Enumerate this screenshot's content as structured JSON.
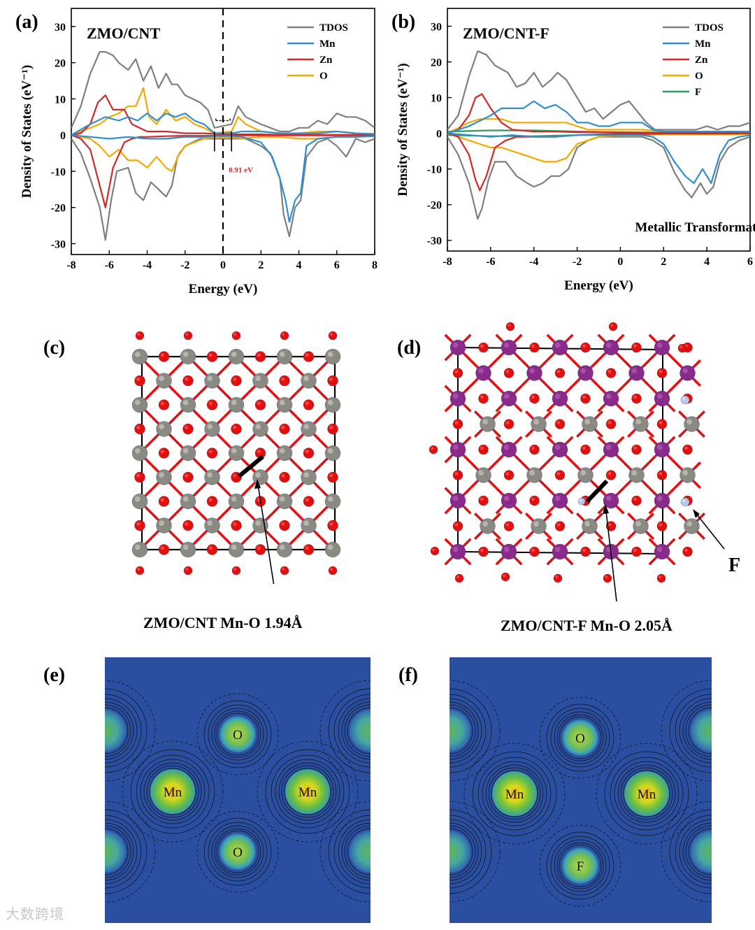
{
  "panels": {
    "a": {
      "label": "(a)",
      "title": "ZMO/CNT",
      "gap_label": "0.91 eV",
      "annotation": ""
    },
    "b": {
      "label": "(b)",
      "title": "ZMO/CNT-F",
      "gap_label": "",
      "annotation": "Metallic Transformation"
    },
    "c": {
      "label": "(c)",
      "caption": "ZMO/CNT Mn-O 1.94Å"
    },
    "d": {
      "label": "(d)",
      "caption": "ZMO/CNT-F Mn-O 2.05Å",
      "arrow_label": "F"
    },
    "e": {
      "label": "(e)",
      "atoms": [
        "O",
        "Mn",
        "Mn",
        "O"
      ]
    },
    "f": {
      "label": "(f)",
      "atoms": [
        "O",
        "Mn",
        "Mn",
        "F"
      ]
    }
  },
  "watermark": "大数跨境",
  "colors": {
    "TDOS": "#7f7f7f",
    "Mn": "#2f8fce",
    "Zn": "#d62728",
    "O": "#f2a900",
    "F": "#2e9c5a",
    "atom_O": "#e01010",
    "atom_Mn": "#8a2a8a",
    "atom_Zn": "#8a8a82",
    "atom_F": "#b8c4e8",
    "map_bg": "#2a4fa0"
  },
  "chart_data": [
    {
      "type": "line",
      "title": "ZMO/CNT",
      "xlabel": "Energy (eV)",
      "ylabel": "Density of States (eV⁻¹)",
      "xlim": [
        -8,
        8
      ],
      "ylim": [
        -33,
        35
      ],
      "xticks": [
        -8,
        -6,
        -4,
        -2,
        0,
        2,
        4,
        6,
        8
      ],
      "yticks": [
        30,
        20,
        10,
        0,
        -10,
        -20,
        -30
      ],
      "fermi_level": 0,
      "band_gap_eV": 0.91,
      "series": [
        {
          "name": "TDOS",
          "x": [
            -8,
            -7.5,
            -7,
            -6.5,
            -6.2,
            -5.8,
            -5.5,
            -5,
            -4.6,
            -4.2,
            -3.8,
            -3.4,
            -3,
            -2.7,
            -2.4,
            -2,
            -1.6,
            -1.2,
            -0.8,
            -0.45,
            0.45,
            0.8,
            1.2,
            1.6,
            2,
            2.5,
            3,
            3.5,
            4,
            4.5,
            5,
            5.5,
            6,
            6.5,
            7,
            7.5,
            8
          ],
          "y": [
            2,
            8,
            17,
            23,
            23,
            22,
            20,
            18,
            21,
            15,
            19,
            13,
            17,
            14,
            14,
            11,
            10,
            9,
            7,
            2,
            3,
            8,
            5,
            4,
            3,
            2,
            1,
            1,
            2,
            2,
            4,
            3,
            6,
            5,
            5,
            4,
            2
          ]
        },
        {
          "name": "TDOS",
          "x": [
            -8,
            -7.5,
            -7,
            -6.5,
            -6.2,
            -5.9,
            -5.6,
            -5,
            -4.6,
            -4.2,
            -3.8,
            -3.4,
            -3,
            -2.7,
            -2.4,
            -2,
            -1.6,
            -1.2,
            -0.8,
            -0.45,
            0.45,
            0.8,
            1.2,
            1.6,
            2,
            2.5,
            3,
            3.2,
            3.5,
            3.8,
            4.1,
            4.4,
            5,
            5.5,
            6,
            6.5,
            7,
            7.5,
            8
          ],
          "y": [
            -1,
            -5,
            -12,
            -20,
            -29,
            -18,
            -10,
            -9,
            -16,
            -18,
            -13,
            -15,
            -17,
            -14,
            -6,
            -3,
            -2,
            -1,
            -1,
            -1,
            -1,
            -1,
            -1,
            -2,
            -3,
            -5,
            -12,
            -22,
            -28,
            -20,
            -18,
            -6,
            -2,
            -1,
            -3,
            -6,
            -1,
            -2,
            -1
          ]
        },
        {
          "name": "Mn",
          "x": [
            -8,
            -7,
            -6.2,
            -5.5,
            -5,
            -4.5,
            -4,
            -3.5,
            -3,
            -2.5,
            -2,
            -1.5,
            -1,
            -0.45,
            0.45,
            1,
            2,
            3,
            4,
            5,
            6,
            7,
            8
          ],
          "y": [
            0,
            3,
            5,
            4,
            5,
            4,
            6,
            4,
            6,
            5,
            6,
            4,
            3,
            0.5,
            0.5,
            1,
            1,
            0.5,
            0.5,
            0.5,
            1,
            0.5,
            0.3
          ]
        },
        {
          "name": "Mn",
          "x": [
            -8,
            -7,
            -6,
            -5,
            -4,
            -3,
            -2,
            -1,
            -0.45,
            0.45,
            1,
            2,
            2.6,
            3,
            3.3,
            3.5,
            3.8,
            4.1,
            4.4,
            5,
            6,
            7,
            8
          ],
          "y": [
            0,
            -0.5,
            -1,
            -0.5,
            -1,
            -1,
            -0.5,
            -0.5,
            -0.3,
            -0.3,
            -0.5,
            -2,
            -6,
            -12,
            -18,
            -24,
            -18,
            -16,
            -3,
            -1,
            -0.5,
            -0.5,
            -0.3
          ]
        },
        {
          "name": "Zn",
          "x": [
            -8,
            -7.5,
            -7,
            -6.6,
            -6.2,
            -5.8,
            -5.2,
            -4.8,
            -4.4,
            -4,
            -3,
            -2,
            -1,
            0,
            1,
            2,
            3,
            4,
            5,
            6,
            7,
            8
          ],
          "y": [
            0,
            0.5,
            3,
            9,
            11,
            7,
            7,
            3,
            2,
            1,
            1,
            0.5,
            0.5,
            0.2,
            0.2,
            0.2,
            0.1,
            0.1,
            0.1,
            0.1,
            0.1,
            0
          ]
        },
        {
          "name": "Zn",
          "x": [
            -8,
            -7.5,
            -7,
            -6.6,
            -6.2,
            -5.8,
            -5.2,
            -4.8,
            -4.4,
            -4,
            -3,
            -2,
            -1,
            0,
            1,
            2,
            3,
            4,
            5,
            6,
            7,
            8
          ],
          "y": [
            0,
            -1,
            -4,
            -12,
            -20,
            -9,
            -2,
            -1,
            -0.5,
            -0.5,
            -0.3,
            -0.2,
            -0.2,
            -0.1,
            -0.1,
            -0.1,
            -0.1,
            -0.1,
            -0.1,
            -0.1,
            -0.1,
            0
          ]
        },
        {
          "name": "O",
          "x": [
            -8,
            -7,
            -6.5,
            -6,
            -5.5,
            -5,
            -4.6,
            -4.2,
            -3.9,
            -3.5,
            -3,
            -2.5,
            -2,
            -1.5,
            -1,
            -0.45,
            0.45,
            0.8,
            1.2,
            2,
            3,
            4,
            5,
            6,
            7,
            8
          ],
          "y": [
            0,
            2,
            3,
            5,
            6,
            8,
            8,
            13,
            5,
            3,
            7,
            4,
            5,
            3,
            2,
            0.5,
            1,
            5,
            3,
            1,
            0.5,
            0.5,
            1,
            1,
            0.5,
            0.3
          ]
        },
        {
          "name": "O",
          "x": [
            -8,
            -7,
            -6.5,
            -6,
            -5.5,
            -5,
            -4.5,
            -4,
            -3.5,
            -3,
            -2.7,
            -2.3,
            -2,
            -1.5,
            -1,
            -0.45,
            0.45,
            1,
            2,
            3,
            4,
            5,
            6,
            7,
            8
          ],
          "y": [
            0,
            -1,
            -3,
            -6,
            -4,
            -7,
            -7,
            -9,
            -6,
            -9,
            -10,
            -5,
            -3,
            -2,
            -1,
            -0.5,
            -0.5,
            -1,
            -0.5,
            -0.5,
            -1,
            -1,
            -0.5,
            -0.5,
            -0.3
          ]
        }
      ],
      "legend": [
        "TDOS",
        "Mn",
        "Zn",
        "O"
      ]
    },
    {
      "type": "line",
      "title": "ZMO/CNT-F",
      "xlabel": "Energy (eV)",
      "ylabel": "Density of States (eV⁻¹)",
      "xlim": [
        -8,
        6
      ],
      "ylim": [
        -33,
        35
      ],
      "xticks": [
        -8,
        -6,
        -4,
        -2,
        0,
        2,
        4,
        6
      ],
      "yticks": [
        30,
        20,
        10,
        0,
        -10,
        -20,
        -30
      ],
      "annotation": "Metallic Transformation",
      "series": [
        {
          "name": "TDOS",
          "x": [
            -8,
            -7.5,
            -7,
            -6.6,
            -6.2,
            -5.8,
            -5.2,
            -4.8,
            -4.4,
            -4,
            -3.6,
            -3.2,
            -2.9,
            -2.5,
            -2,
            -1.6,
            -1.2,
            -0.8,
            -0.4,
            0,
            0.4,
            0.8,
            1.2,
            1.6,
            2,
            2.5,
            3,
            3.5,
            4,
            4.5,
            5,
            5.5,
            6
          ],
          "y": [
            1,
            5,
            16,
            23,
            22,
            19,
            17,
            13,
            14,
            17,
            13,
            15,
            17,
            15,
            10,
            6,
            7,
            4,
            6,
            8,
            9,
            6,
            3,
            1,
            1,
            1,
            1,
            1,
            2,
            1,
            2,
            2,
            3
          ]
        },
        {
          "name": "TDOS",
          "x": [
            -8,
            -7.5,
            -7,
            -6.6,
            -6.4,
            -6.1,
            -5.8,
            -5.3,
            -4.8,
            -4.3,
            -4,
            -3.6,
            -3.2,
            -2.8,
            -2.4,
            -2,
            -1.5,
            -1,
            -0.5,
            0,
            0.5,
            1,
            1.5,
            2,
            2.5,
            3,
            3.3,
            3.7,
            4,
            4.3,
            4.6,
            5,
            5.5,
            6
          ],
          "y": [
            -1,
            -6,
            -14,
            -24,
            -21,
            -13,
            -8,
            -8,
            -12,
            -14,
            -15,
            -14,
            -12,
            -12,
            -10,
            -4,
            -2,
            -1,
            -1,
            -1,
            -1,
            -1,
            -2,
            -4,
            -11,
            -16,
            -18,
            -14,
            -17,
            -15,
            -8,
            -4,
            -2,
            -1
          ]
        },
        {
          "name": "Mn",
          "x": [
            -8,
            -7,
            -6,
            -5.5,
            -5,
            -4.5,
            -4,
            -3.5,
            -3,
            -2.5,
            -2,
            -1.5,
            -1,
            -0.5,
            0,
            0.5,
            1,
            1.5,
            2,
            3,
            4,
            5,
            6
          ],
          "y": [
            0,
            2,
            5,
            7,
            7,
            7,
            9,
            7,
            8,
            6,
            3,
            3,
            2,
            2,
            3,
            3,
            3,
            1,
            0.5,
            0.5,
            0.5,
            0.5,
            0.5
          ]
        },
        {
          "name": "Mn",
          "x": [
            -8,
            -7,
            -6,
            -5,
            -4,
            -3,
            -2,
            -1,
            0,
            1,
            1.5,
            2,
            2.5,
            3,
            3.4,
            3.8,
            4.2,
            4.6,
            5,
            5.5,
            6
          ],
          "y": [
            0,
            -0.5,
            -1,
            -0.5,
            -1,
            -1,
            -0.5,
            -0.5,
            -0.5,
            -0.5,
            -1,
            -3,
            -8,
            -12,
            -14,
            -10,
            -14,
            -6,
            -2,
            -1,
            -0.5
          ]
        },
        {
          "name": "Zn",
          "x": [
            -8,
            -7.5,
            -7,
            -6.7,
            -6.4,
            -6,
            -5.5,
            -5,
            -4,
            -3,
            -2,
            -1,
            0,
            1,
            2,
            3,
            4,
            5,
            6
          ],
          "y": [
            0,
            1,
            5,
            10,
            11,
            7,
            3,
            1,
            0.5,
            0.5,
            0.3,
            0.3,
            0.2,
            0.2,
            0.1,
            0.1,
            0.1,
            0.1,
            0
          ]
        },
        {
          "name": "Zn",
          "x": [
            -8,
            -7.5,
            -7,
            -6.7,
            -6.5,
            -6.2,
            -5.8,
            -5.3,
            -4.8,
            -4,
            -3,
            -2,
            -1,
            0,
            1,
            2,
            3,
            4,
            5,
            6
          ],
          "y": [
            0,
            -1,
            -6,
            -13,
            -16,
            -12,
            -4,
            -2,
            -1,
            -1,
            -1,
            -0.5,
            -0.3,
            -0.2,
            -0.2,
            -0.1,
            -0.1,
            -0.1,
            -0.1,
            0
          ]
        },
        {
          "name": "O",
          "x": [
            -8,
            -7,
            -6.5,
            -6,
            -5.5,
            -5,
            -4.5,
            -4,
            -3.5,
            -3,
            -2.5,
            -2,
            -1.5,
            -1,
            -0.5,
            0,
            0.5,
            1,
            2,
            3,
            4,
            5,
            6
          ],
          "y": [
            0,
            3,
            4,
            4,
            4,
            3,
            3,
            3,
            3,
            3,
            3,
            2,
            1,
            1,
            1,
            1,
            1,
            1,
            0.5,
            0.5,
            0.5,
            0.5,
            0.3
          ]
        },
        {
          "name": "O",
          "x": [
            -8,
            -7,
            -6.5,
            -6,
            -5.5,
            -5,
            -4.5,
            -4,
            -3.5,
            -3,
            -2.5,
            -2,
            -1.5,
            -1,
            0,
            1,
            2,
            3,
            4,
            5,
            6
          ],
          "y": [
            0,
            -2,
            -3,
            -4,
            -4,
            -5,
            -6,
            -7,
            -8,
            -8,
            -7,
            -3,
            -2,
            -1,
            -0.5,
            -0.5,
            -0.3,
            -0.3,
            -0.3,
            -0.3,
            -0.2
          ]
        },
        {
          "name": "F",
          "x": [
            -8,
            -6,
            -4,
            -2,
            0,
            2,
            4,
            6
          ],
          "y": [
            0.5,
            0.8,
            0.8,
            0.5,
            0.3,
            0.2,
            0.2,
            0.1
          ]
        },
        {
          "name": "F",
          "x": [
            -8,
            -6,
            -4,
            -2,
            0,
            2,
            4,
            6
          ],
          "y": [
            -0.5,
            -0.8,
            -0.8,
            -0.5,
            -0.3,
            -0.2,
            -0.2,
            -0.1
          ]
        }
      ],
      "legend": [
        "TDOS",
        "Mn",
        "Zn",
        "O",
        "F"
      ]
    }
  ]
}
